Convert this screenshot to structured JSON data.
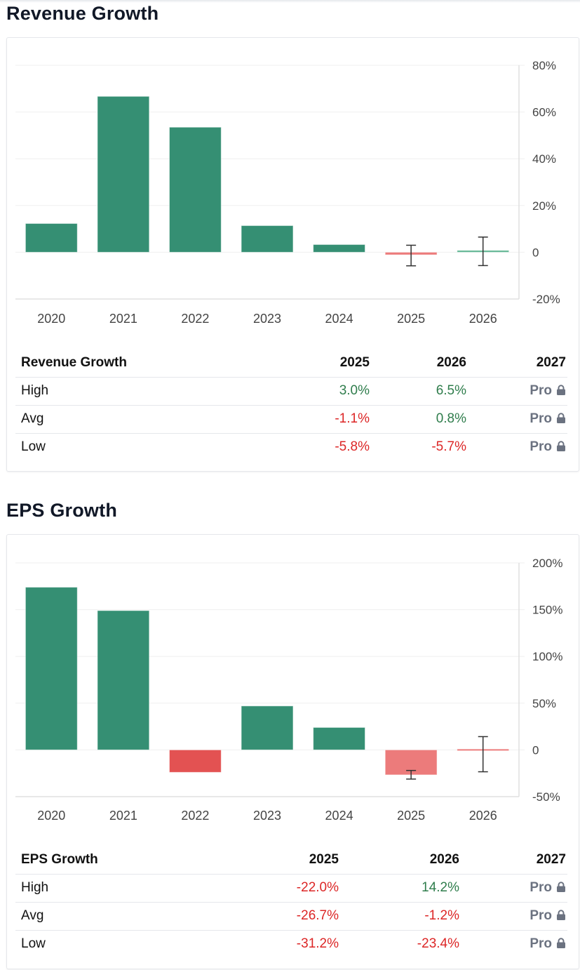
{
  "colors": {
    "green_bar": "#358f73",
    "red_bar": "#e35252",
    "light_red_bar": "#ec7b7b",
    "light_green": "#5fb592",
    "positive_text": "#2f7d4c",
    "negative_text": "#dc2626",
    "pro_text": "#6b7280"
  },
  "sections": [
    {
      "title": "Revenue Growth",
      "table": {
        "headers": [
          "Revenue Growth",
          "2025",
          "2026",
          "2027"
        ],
        "rows": [
          {
            "label": "High",
            "values": [
              "3.0%",
              "6.5%"
            ],
            "locked": "Pro"
          },
          {
            "label": "Avg",
            "values": [
              "-1.1%",
              "0.8%"
            ],
            "locked": "Pro"
          },
          {
            "label": "Low",
            "values": [
              "-5.8%",
              "-5.7%"
            ],
            "locked": "Pro"
          }
        ]
      }
    },
    {
      "title": "EPS Growth",
      "table": {
        "headers": [
          "EPS Growth",
          "2025",
          "2026",
          "2027"
        ],
        "rows": [
          {
            "label": "High",
            "values": [
              "-22.0%",
              "14.2%"
            ],
            "locked": "Pro"
          },
          {
            "label": "Avg",
            "values": [
              "-26.7%",
              "-1.2%"
            ],
            "locked": "Pro"
          },
          {
            "label": "Low",
            "values": [
              "-31.2%",
              "-23.4%"
            ],
            "locked": "Pro"
          }
        ]
      }
    }
  ],
  "chart_data": [
    {
      "type": "bar",
      "title": "Revenue Growth",
      "categories": [
        "2020",
        "2021",
        "2022",
        "2023",
        "2024",
        "2025",
        "2026"
      ],
      "values": [
        12.3,
        66.7,
        53.5,
        11.4,
        3.3,
        -1.1,
        0.8
      ],
      "estimate": [
        false,
        false,
        false,
        false,
        false,
        true,
        true
      ],
      "error_bars": {
        "2025": {
          "low": -5.8,
          "high": 3.0
        },
        "2026": {
          "low": -5.7,
          "high": 6.5
        }
      },
      "yticks": [
        80,
        60,
        40,
        20,
        0,
        -20
      ],
      "ytick_labels": [
        "80%",
        "60%",
        "40%",
        "20%",
        "0",
        "-20%"
      ],
      "ylim": [
        -20,
        80
      ],
      "y_axis_side": "right",
      "grid": true,
      "xlabel": "",
      "ylabel": ""
    },
    {
      "type": "bar",
      "title": "EPS Growth",
      "categories": [
        "2020",
        "2021",
        "2022",
        "2023",
        "2024",
        "2025",
        "2026"
      ],
      "values": [
        174,
        149,
        -24,
        47,
        24,
        -26.7,
        -1.2
      ],
      "estimate": [
        false,
        false,
        false,
        false,
        false,
        true,
        true
      ],
      "error_bars": {
        "2025": {
          "low": -31.2,
          "high": -22.0
        },
        "2026": {
          "low": -23.4,
          "high": 14.2
        }
      },
      "yticks": [
        200,
        150,
        100,
        50,
        0,
        -50
      ],
      "ytick_labels": [
        "200%",
        "150%",
        "100%",
        "50%",
        "0",
        "-50%"
      ],
      "ylim": [
        -50,
        200
      ],
      "y_axis_side": "right",
      "grid": true,
      "xlabel": "",
      "ylabel": ""
    }
  ]
}
